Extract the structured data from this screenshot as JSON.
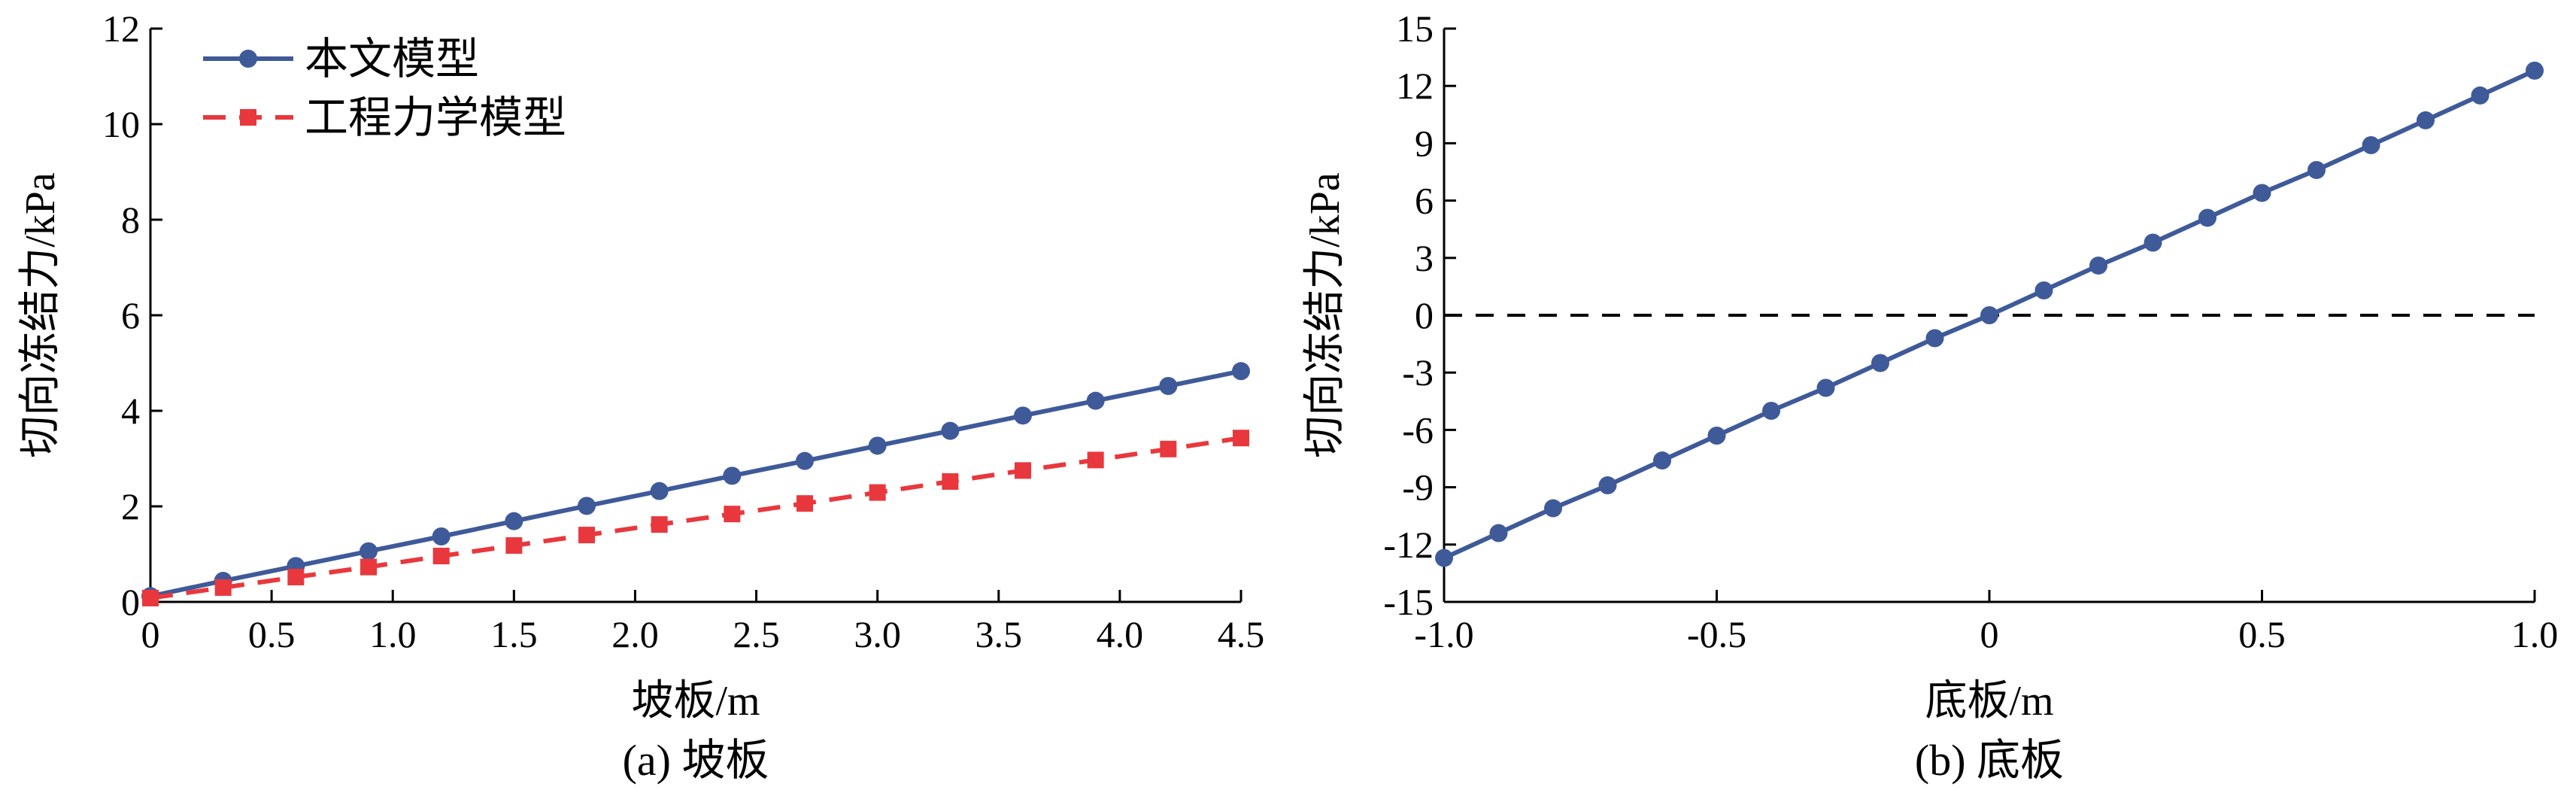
{
  "chart_data": [
    {
      "type": "line",
      "caption": "(a) 坡板",
      "xlabel": "坡板/m",
      "ylabel": "切向冻结力/kPa",
      "xlim": [
        0,
        4.5
      ],
      "ylim": [
        0,
        12
      ],
      "xticks": [
        "0",
        "0.5",
        "1.0",
        "1.5",
        "2.0",
        "2.5",
        "3.0",
        "3.5",
        "4.0",
        "4.5"
      ],
      "yticks": [
        "0",
        "2",
        "4",
        "6",
        "8",
        "10",
        "12"
      ],
      "legend_position": "top-left",
      "x": [
        0,
        0.3,
        0.6,
        0.9,
        1.2,
        1.5,
        1.8,
        2.1,
        2.4,
        2.7,
        3.0,
        3.3,
        3.6,
        3.9,
        4.2,
        4.5
      ],
      "series": [
        {
          "name": "本文模型",
          "color": "#3f5a99",
          "style": "solid",
          "marker": "circle",
          "values": [
            0.12,
            0.44,
            0.75,
            1.06,
            1.37,
            1.69,
            2.01,
            2.32,
            2.64,
            2.95,
            3.27,
            3.58,
            3.9,
            4.21,
            4.52,
            4.83
          ]
        },
        {
          "name": "工程力学模型",
          "color": "#e8383d",
          "style": "dashed",
          "marker": "square",
          "values": [
            0.08,
            0.3,
            0.52,
            0.73,
            0.96,
            1.18,
            1.4,
            1.62,
            1.84,
            2.06,
            2.29,
            2.52,
            2.75,
            2.97,
            3.2,
            3.43
          ]
        }
      ]
    },
    {
      "type": "line",
      "caption": "(b) 底板",
      "xlabel": "底板/m",
      "ylabel": "切向冻结力/kPa",
      "xlim": [
        -1.0,
        1.0
      ],
      "ylim": [
        -15,
        15
      ],
      "xticks": [
        "-1.0",
        "-0.5",
        "0",
        "0.5",
        "1.0"
      ],
      "yticks": [
        "-15",
        "-12",
        "-9",
        "-6",
        "-3",
        "0",
        "3",
        "6",
        "9",
        "12",
        "15"
      ],
      "reference_line": {
        "y": 0,
        "style": "dashed",
        "color": "#000000"
      },
      "x": [
        -1.0,
        -0.9,
        -0.8,
        -0.7,
        -0.6,
        -0.5,
        -0.4,
        -0.3,
        -0.2,
        -0.1,
        0,
        0.1,
        0.2,
        0.3,
        0.4,
        0.5,
        0.6,
        0.7,
        0.8,
        0.9,
        1.0
      ],
      "series": [
        {
          "color": "#3f5a99",
          "style": "solid",
          "marker": "circle",
          "values": [
            -12.7,
            -11.4,
            -10.1,
            -8.9,
            -7.6,
            -6.3,
            -5.0,
            -3.8,
            -2.5,
            -1.2,
            0,
            1.3,
            2.6,
            3.8,
            5.1,
            6.4,
            7.6,
            8.9,
            10.2,
            11.5,
            12.8
          ]
        }
      ]
    }
  ]
}
